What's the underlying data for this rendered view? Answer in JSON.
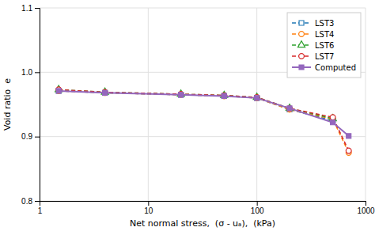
{
  "chart_data": {
    "type": "line",
    "xlabel": "Net normal stress,  (σ - uₐ),  (kPa)",
    "ylabel": "Void ratio  e",
    "log": "x",
    "xlim": [
      1,
      1000
    ],
    "xticks": [
      1,
      10,
      100,
      1000
    ],
    "ylim": [
      0.8,
      1.1
    ],
    "yticks": [
      0.8,
      0.9,
      {
        "value": 1.0,
        "label": "1.0"
      },
      1.1
    ],
    "grid": true,
    "legend": "upper-right",
    "series": [
      {
        "name": "LST3",
        "x": [
          1.5,
          4.0,
          20.0,
          50.0,
          100.0,
          200.0,
          500.0
        ],
        "values": [
          0.971,
          0.968,
          0.965,
          0.963,
          0.96,
          0.942,
          0.925
        ],
        "marker": "open-square",
        "line_style": "dashed"
      },
      {
        "name": "LST4",
        "x": [
          1.5,
          4.0,
          20.0,
          50.0,
          100.0,
          200.0,
          500.0,
          700.0
        ],
        "values": [
          0.971,
          0.968,
          0.965,
          0.963,
          0.96,
          0.942,
          0.927,
          0.875
        ],
        "marker": "open-circle",
        "line_style": "dashed"
      },
      {
        "name": "LST6",
        "x": [
          1.5,
          4.0,
          20.0,
          50.0,
          100.0,
          200.0,
          500.0
        ],
        "values": [
          0.973,
          0.969,
          0.966,
          0.964,
          0.961,
          0.944,
          0.928
        ],
        "marker": "open-triangle",
        "line_style": "dashed"
      },
      {
        "name": "LST7",
        "x": [
          1.5,
          4.0,
          20.0,
          50.0,
          100.0,
          200.0,
          500.0,
          700.0
        ],
        "values": [
          0.973,
          0.969,
          0.966,
          0.964,
          0.961,
          0.944,
          0.93,
          0.878
        ],
        "marker": "open-circle",
        "line_style": "dashed"
      },
      {
        "name": "Computed",
        "x": [
          1.5,
          4.0,
          20.0,
          50.0,
          100.0,
          200.0,
          500.0,
          700.0
        ],
        "values": [
          0.971,
          0.968,
          0.965,
          0.963,
          0.96,
          0.944,
          0.922,
          0.901
        ],
        "marker": "square",
        "line_style": "solid"
      }
    ]
  }
}
